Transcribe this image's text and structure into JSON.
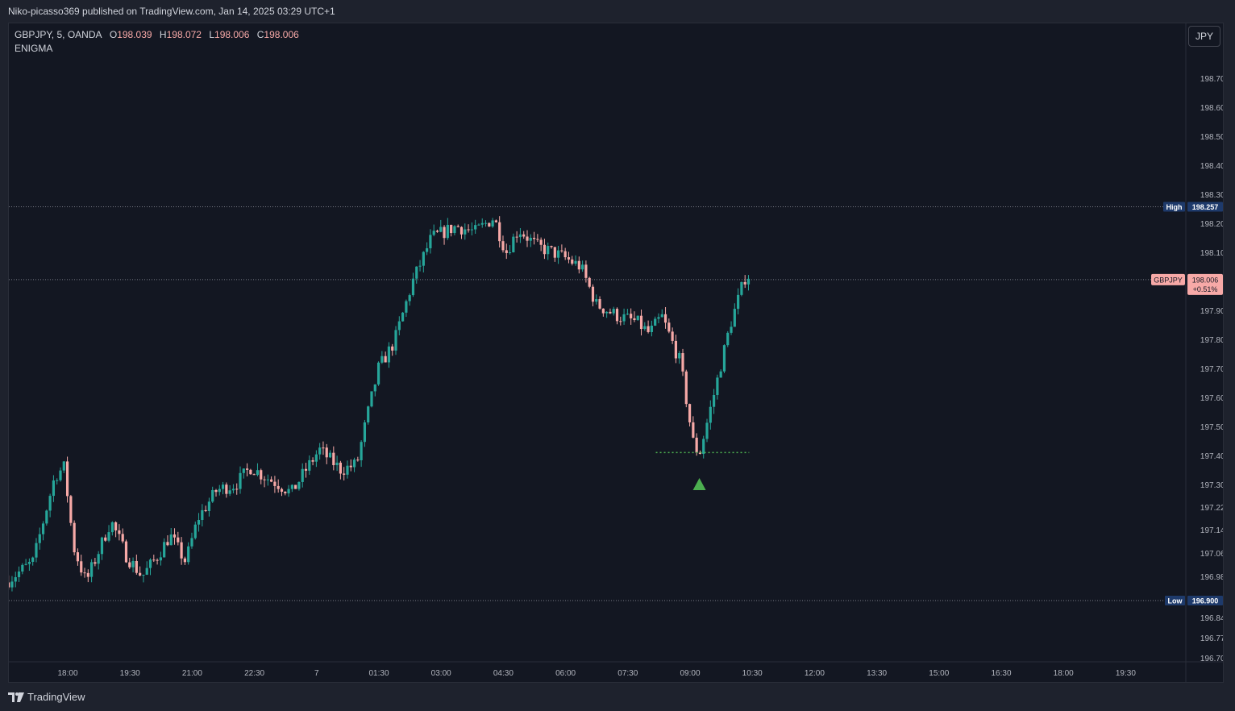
{
  "header": {
    "published": "Niko-picasso369 published on TradingView.com, Jan 14, 2025 03:29 UTC+1"
  },
  "legend": {
    "symbol": "GBPJPY, 5, OANDA",
    "o_key": "O",
    "o": "198.039",
    "h_key": "H",
    "h": "198.072",
    "l_key": "L",
    "l": "198.006",
    "c_key": "C",
    "c": "198.006",
    "indicator": "ENIGMA"
  },
  "currency_button": "JPY",
  "footer": {
    "brand": "TradingView"
  },
  "colors": {
    "up": "#26a69a",
    "down": "#f7a9a7",
    "background": "#131722",
    "text": "#d1d4dc",
    "marker": "#4caf50"
  },
  "chart_data": {
    "type": "candlestick",
    "y_ticks": [
      "198.700",
      "198.600",
      "198.500",
      "198.400",
      "198.300",
      "198.200",
      "198.100",
      "197.900",
      "197.800",
      "197.700",
      "197.600",
      "197.500",
      "197.400",
      "197.300",
      "197.220",
      "197.140",
      "197.060",
      "196.980",
      "196.840",
      "196.770",
      "196.700"
    ],
    "x_ticks": [
      "18:00",
      "19:30",
      "21:00",
      "22:30",
      "7",
      "01:30",
      "03:00",
      "04:30",
      "06:00",
      "07:30",
      "09:00",
      "10:30",
      "12:00",
      "13:30",
      "15:00",
      "16:30",
      "18:00",
      "19:30"
    ],
    "high_line": {
      "label": "High",
      "value": "198.257"
    },
    "low_line": {
      "label": "Low",
      "value": "196.900"
    },
    "last_price": {
      "symbol": "GBPJPY",
      "value": "198.006",
      "change": "+0.51%"
    },
    "signal": {
      "type": "buy-arrow",
      "time_index": 10.15,
      "price": 197.3,
      "level": 197.41,
      "level_from": 9.45,
      "level_to": 10.95
    },
    "path": [
      [
        -0.95,
        196.96
      ],
      [
        -0.5,
        197.03
      ],
      [
        -0.15,
        197.33
      ],
      [
        0,
        197.36
      ],
      [
        0.15,
        197.08
      ],
      [
        0.35,
        196.96
      ],
      [
        0.75,
        197.17
      ],
      [
        1.0,
        197.05
      ],
      [
        1.25,
        196.98
      ],
      [
        1.5,
        197.05
      ],
      [
        1.7,
        197.12
      ],
      [
        1.95,
        197.03
      ],
      [
        2.15,
        197.18
      ],
      [
        2.45,
        197.28
      ],
      [
        2.75,
        197.3
      ],
      [
        3.0,
        197.36
      ],
      [
        3.2,
        197.33
      ],
      [
        3.45,
        197.3
      ],
      [
        3.65,
        197.27
      ],
      [
        3.85,
        197.34
      ],
      [
        4.1,
        197.42
      ],
      [
        4.45,
        197.35
      ],
      [
        4.7,
        197.37
      ],
      [
        4.85,
        197.52
      ],
      [
        5.05,
        197.7
      ],
      [
        5.3,
        197.79
      ],
      [
        5.6,
        198.0
      ],
      [
        5.9,
        198.15
      ],
      [
        6.3,
        198.19
      ],
      [
        6.6,
        198.17
      ],
      [
        6.9,
        198.22
      ],
      [
        7.1,
        198.1
      ],
      [
        7.3,
        198.18
      ],
      [
        7.6,
        198.12
      ],
      [
        7.85,
        198.1
      ],
      [
        8.05,
        198.08
      ],
      [
        8.3,
        198.05
      ],
      [
        8.55,
        197.92
      ],
      [
        8.9,
        197.88
      ],
      [
        9.2,
        197.86
      ],
      [
        9.4,
        197.82
      ],
      [
        9.6,
        197.88
      ],
      [
        9.75,
        197.8
      ],
      [
        9.9,
        197.72
      ],
      [
        10.1,
        197.45
      ],
      [
        10.2,
        197.4
      ],
      [
        10.45,
        197.62
      ],
      [
        10.7,
        197.85
      ],
      [
        10.95,
        198.02
      ]
    ]
  }
}
